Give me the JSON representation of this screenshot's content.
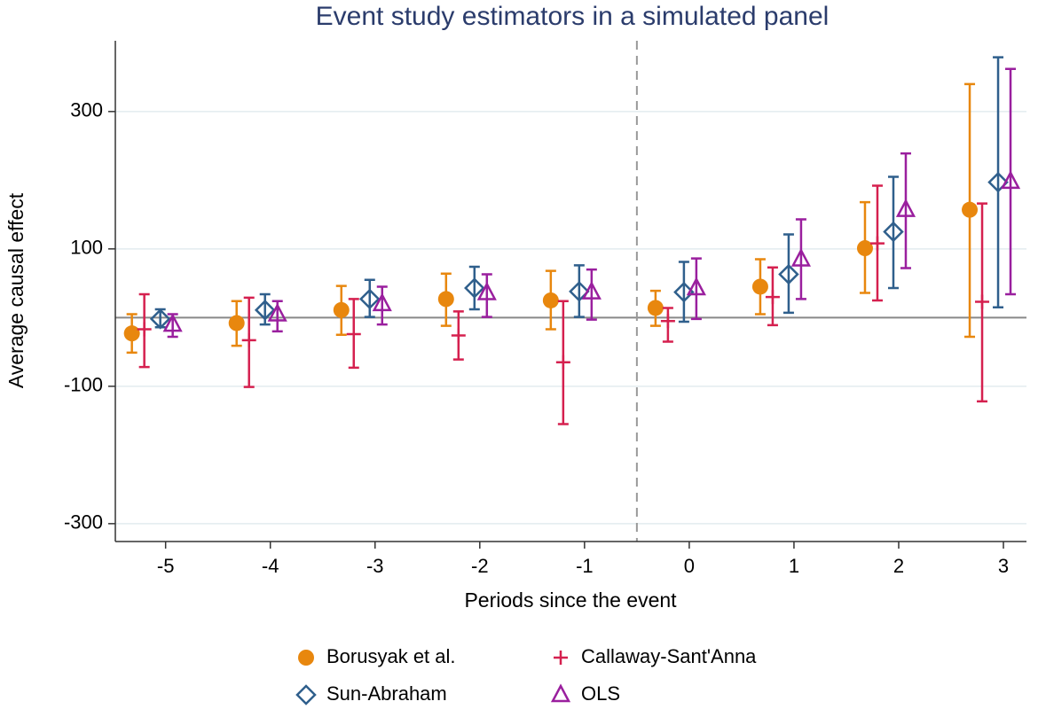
{
  "chart_data": {
    "type": "errorbar",
    "title": "Event study estimators in a simulated panel",
    "x_label": "Periods since the event",
    "y_label": "Average causal effect",
    "x": [
      -5,
      -4,
      -3,
      -2,
      -1,
      0,
      1,
      2,
      3
    ],
    "xlim": [
      -5.48,
      3.22
    ],
    "xticks": [
      -5,
      -4,
      -3,
      -2,
      -1,
      0,
      1,
      2,
      3
    ],
    "ylim": [
      -326,
      403
    ],
    "yticks": [
      -300,
      -100,
      100,
      300
    ],
    "grid": true,
    "hline": 0,
    "vline": -0.5,
    "legend": "bottom",
    "series": [
      {
        "name": "Borusyak et al.",
        "color": "#e8870e",
        "marker": "circle",
        "values": [
          -23,
          -8,
          11,
          27,
          25,
          14,
          45,
          101,
          157
        ],
        "lower": [
          -51,
          -41,
          -25,
          -12,
          -17,
          -12,
          5,
          36,
          -28
        ],
        "upper": [
          5,
          24,
          46,
          64,
          68,
          39,
          85,
          168,
          340
        ]
      },
      {
        "name": "Callaway-Sant'Anna",
        "color": "#d5204f",
        "marker": "plus",
        "values": [
          -17,
          -33,
          -24,
          -26,
          -65,
          -5,
          30,
          108,
          23
        ],
        "lower": [
          -72,
          -101,
          -73,
          -61,
          -155,
          -35,
          -11,
          25,
          -122
        ],
        "upper": [
          34,
          29,
          27,
          9,
          24,
          14,
          73,
          192,
          166
        ]
      },
      {
        "name": "Sun-Abraham",
        "color": "#2f5f8c",
        "marker": "diamond",
        "values": [
          -2,
          11,
          27,
          43,
          38,
          37,
          63,
          125,
          197
        ],
        "lower": [
          -14,
          -10,
          1,
          12,
          1,
          -6,
          7,
          43,
          15
        ],
        "upper": [
          12,
          34,
          55,
          74,
          76,
          81,
          121,
          205,
          379
        ]
      },
      {
        "name": "OLS",
        "color": "#9a1f9e",
        "marker": "triangle",
        "values": [
          -10,
          5,
          20,
          36,
          37,
          43,
          85,
          157,
          198
        ],
        "lower": [
          -28,
          -20,
          -10,
          1,
          -3,
          -2,
          27,
          72,
          34
        ],
        "upper": [
          5,
          24,
          45,
          63,
          70,
          86,
          143,
          239,
          362
        ]
      }
    ]
  }
}
